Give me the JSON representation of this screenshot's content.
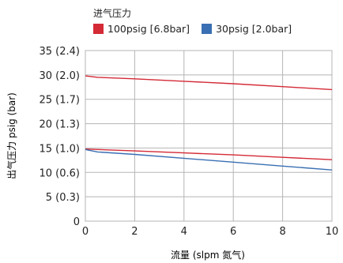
{
  "chart_data": {
    "type": "line",
    "legend_title": "进气压力",
    "xlabel": "流量 (slpm 氮气)",
    "ylabel": "出气压力 psig (bar)",
    "xlim": [
      0,
      10
    ],
    "ylim": [
      0,
      35
    ],
    "x_ticks": [
      0,
      2,
      4,
      6,
      8,
      10
    ],
    "y_ticks": [
      {
        "value": 0,
        "label": "0"
      },
      {
        "value": 5,
        "label": "5 (0.3)"
      },
      {
        "value": 10,
        "label": "10 (0.6)"
      },
      {
        "value": 15,
        "label": "15 (1.0)"
      },
      {
        "value": 20,
        "label": "20 (1.3)"
      },
      {
        "value": 25,
        "label": "25 (1.7)"
      },
      {
        "value": 30,
        "label": "30 (2.0)"
      },
      {
        "value": 35,
        "label": "35 (2.4)"
      }
    ],
    "grid": true,
    "legend_position": "top",
    "series": [
      {
        "name": "100psig [6.8bar]",
        "color": "#d42a36",
        "x": [
          0,
          0.5,
          2,
          4,
          6,
          8,
          10
        ],
        "y": [
          29.8,
          29.5,
          29.2,
          28.7,
          28.2,
          27.6,
          27.0
        ]
      },
      {
        "name": "100psig [6.8bar]",
        "color": "#d42a36",
        "legend": false,
        "x": [
          0,
          0.5,
          2,
          4,
          6,
          8,
          10
        ],
        "y": [
          14.8,
          14.7,
          14.4,
          14.0,
          13.6,
          13.1,
          12.6
        ]
      },
      {
        "name": "30psig [2.0bar]",
        "color": "#3a6fb3",
        "x": [
          0,
          0.5,
          2,
          4,
          6,
          8,
          10
        ],
        "y": [
          14.7,
          14.2,
          13.7,
          12.9,
          12.1,
          11.3,
          10.5
        ]
      }
    ]
  }
}
